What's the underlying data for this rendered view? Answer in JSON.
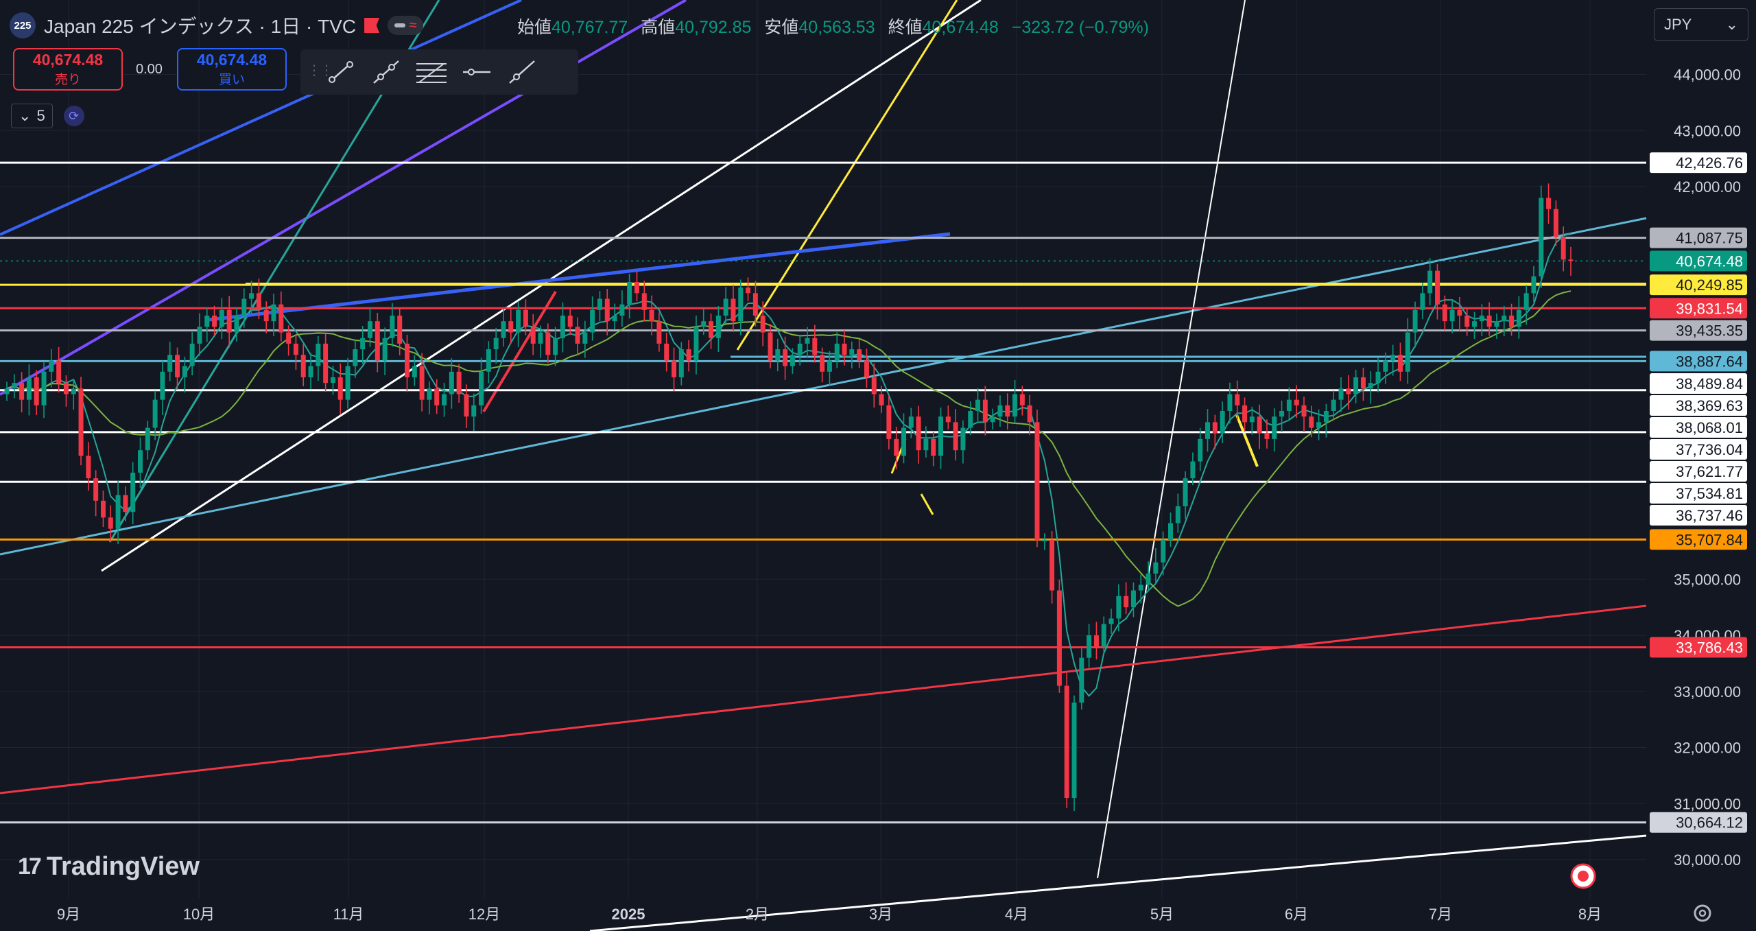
{
  "header": {
    "symbol_badge": "225",
    "title": "Japan 225 インデックス · 1日 · TVC",
    "ohlc": {
      "open_label": "始値",
      "open": "40,767.77",
      "high_label": "高値",
      "high": "40,792.85",
      "low_label": "安値",
      "low": "40,563.53",
      "close_label": "終値",
      "close": "40,674.48",
      "change": "−323.72 (−0.79%)"
    }
  },
  "trade": {
    "sell_price": "40,674.48",
    "sell_label": "売り",
    "spread": "0.00",
    "buy_price": "40,674.48",
    "buy_label": "買い"
  },
  "indicator": {
    "count": "5"
  },
  "currency": "JPY",
  "branding": "TradingView",
  "icons": [
    "symbol-badge",
    "flag-icon",
    "trend-line-tool-icon",
    "ray-tool-icon",
    "fib-tool-icon",
    "horizontal-line-tool-icon",
    "extended-line-tool-icon",
    "chevron-down-icon",
    "sync-icon",
    "settings-gear-icon",
    "record-icon"
  ],
  "colors": {
    "background": "#131722",
    "up": "#089981",
    "down": "#f23645",
    "white_line": "#ffffff",
    "blue_line": "#3861f6",
    "cyan_line": "#5fb8d6",
    "yellow_line": "#ffeb3b",
    "orange_line": "#ff9800",
    "red_line": "#f23645",
    "purple_line": "#7c4dff",
    "ma_line": "#7cb342"
  },
  "chart_data": {
    "type": "candlestick",
    "title": "Japan 225 インデックス · 1日 · TVC",
    "y_range": [
      29400,
      44500
    ],
    "y_ticks": [
      "30,000.00",
      "31,000.00",
      "32,000.00",
      "33,000.00",
      "34,000.00",
      "35,000.00",
      "42,000.00",
      "43,000.00",
      "44,000.00"
    ],
    "x_ticks": [
      "9月",
      "10月",
      "11月",
      "12月",
      "2025",
      "2月",
      "3月",
      "4月",
      "5月",
      "6月",
      "7月",
      "8月"
    ],
    "price_labels": [
      {
        "text": "42,426.76",
        "value": 42426.76,
        "bg": "#ffffff",
        "fg": "#131722"
      },
      {
        "text": "41,087.75",
        "value": 41087.75,
        "bg": "#b2b5be",
        "fg": "#131722"
      },
      {
        "text": "40,674.48",
        "value": 40674.48,
        "bg": "#089981",
        "fg": "#ffffff"
      },
      {
        "text": "40,249.85",
        "value": 40249.85,
        "bg": "#ffeb3b",
        "fg": "#131722"
      },
      {
        "text": "39,831.54",
        "value": 39831.54,
        "bg": "#f23645",
        "fg": "#ffffff"
      },
      {
        "text": "39,435.35",
        "value": 39435.35,
        "bg": "#b2b5be",
        "fg": "#131722"
      },
      {
        "text": "38,887.64",
        "value": 38887.64,
        "bg": "#5fb8d6",
        "fg": "#131722"
      },
      {
        "text": "38,489.84",
        "value": 38489.84,
        "bg": "#ffffff",
        "fg": "#131722"
      },
      {
        "text": "38,369.63",
        "value": 38369.63,
        "bg": "#ffffff",
        "fg": "#131722"
      },
      {
        "text": "38,068.01",
        "value": 38068.01,
        "bg": "#ffffff",
        "fg": "#131722"
      },
      {
        "text": "37,736.04",
        "value": 37736.04,
        "bg": "#ffffff",
        "fg": "#131722"
      },
      {
        "text": "37,621.77",
        "value": 37621.77,
        "bg": "#ffffff",
        "fg": "#131722"
      },
      {
        "text": "37,534.81",
        "value": 37534.81,
        "bg": "#ffffff",
        "fg": "#131722"
      },
      {
        "text": "36,737.46",
        "value": 36737.46,
        "bg": "#ffffff",
        "fg": "#131722"
      },
      {
        "text": "35,707.84",
        "value": 35707.84,
        "bg": "#ff9800",
        "fg": "#131722"
      },
      {
        "text": "33,786.43",
        "value": 33786.43,
        "bg": "#f23645",
        "fg": "#ffffff"
      },
      {
        "text": "30,664.12",
        "value": 30664.12,
        "bg": "#d1d4dc",
        "fg": "#131722"
      }
    ],
    "horizontal_levels": [
      {
        "value": 42426.76,
        "color": "#ffffff"
      },
      {
        "value": 41087.75,
        "color": "#b2b5be"
      },
      {
        "value": 40249.85,
        "color": "#ffeb3b"
      },
      {
        "value": 39831.54,
        "color": "#f23645"
      },
      {
        "value": 39435.35,
        "color": "#b2b5be"
      },
      {
        "value": 38887.64,
        "color": "#5fb8d6"
      },
      {
        "value": 38369.63,
        "color": "#ffffff"
      },
      {
        "value": 37621.77,
        "color": "#ffffff"
      },
      {
        "value": 36737.46,
        "color": "#ffffff"
      },
      {
        "value": 35707.84,
        "color": "#ff9800"
      },
      {
        "value": 33786.43,
        "color": "#f23645"
      },
      {
        "value": 30664.12,
        "color": "#d1d4dc"
      }
    ],
    "closes": [
      38400,
      38500,
      38200,
      38600,
      38100,
      38700,
      38900,
      38500,
      38300,
      38400,
      37200,
      36800,
      36400,
      36100,
      35900,
      36500,
      36200,
      36900,
      37300,
      37700,
      38200,
      38700,
      39000,
      38600,
      38800,
      39200,
      39500,
      39700,
      39500,
      39800,
      39400,
      39700,
      40000,
      40100,
      39800,
      39600,
      39900,
      39400,
      39200,
      39000,
      38600,
      38800,
      39200,
      38500,
      38600,
      38200,
      38800,
      39100,
      39300,
      39600,
      38900,
      39300,
      39700,
      39200,
      38600,
      38800,
      38200,
      38400,
      38100,
      38300,
      38700,
      38300,
      37900,
      38100,
      38700,
      39100,
      39300,
      39600,
      39400,
      39800,
      39500,
      39200,
      39400,
      39000,
      39300,
      39700,
      39500,
      39200,
      39400,
      39800,
      40000,
      39600,
      39700,
      39900,
      40300,
      40100,
      39800,
      39600,
      39200,
      38900,
      38600,
      39100,
      38900,
      39500,
      39600,
      39300,
      39700,
      40000,
      39600,
      40200,
      40100,
      39700,
      39400,
      38900,
      39100,
      38800,
      39000,
      39200,
      39300,
      39000,
      38700,
      38900,
      39200,
      39000,
      39100,
      38900,
      38600,
      38300,
      38100,
      37500,
      37200,
      37700,
      37900,
      37300,
      37500,
      37200,
      37900,
      37800,
      37300,
      37700,
      38000,
      38200,
      37800,
      37900,
      38100,
      37900,
      38300,
      38100,
      37800,
      35700,
      35700,
      34800,
      33100,
      31100,
      32800,
      33600,
      34000,
      33800,
      34200,
      34300,
      34700,
      34500,
      34800,
      34900,
      35100,
      35300,
      35700,
      36000,
      36300,
      36800,
      37100,
      37500,
      37800,
      37600,
      38000,
      38300,
      38100,
      37800,
      37900,
      37600,
      37500,
      37900,
      38000,
      38200,
      38100,
      37900,
      37700,
      37800,
      38000,
      38200,
      38400,
      38300,
      38600,
      38400,
      38500,
      38700,
      38900,
      39000,
      38700,
      39400,
      39800,
      40100,
      40500,
      39900,
      39600,
      39800,
      39700,
      39500,
      39600,
      39700,
      39500,
      39600,
      39700,
      39500,
      39800,
      40100,
      40400,
      41800,
      41600,
      41100,
      40700,
      40674
    ]
  }
}
